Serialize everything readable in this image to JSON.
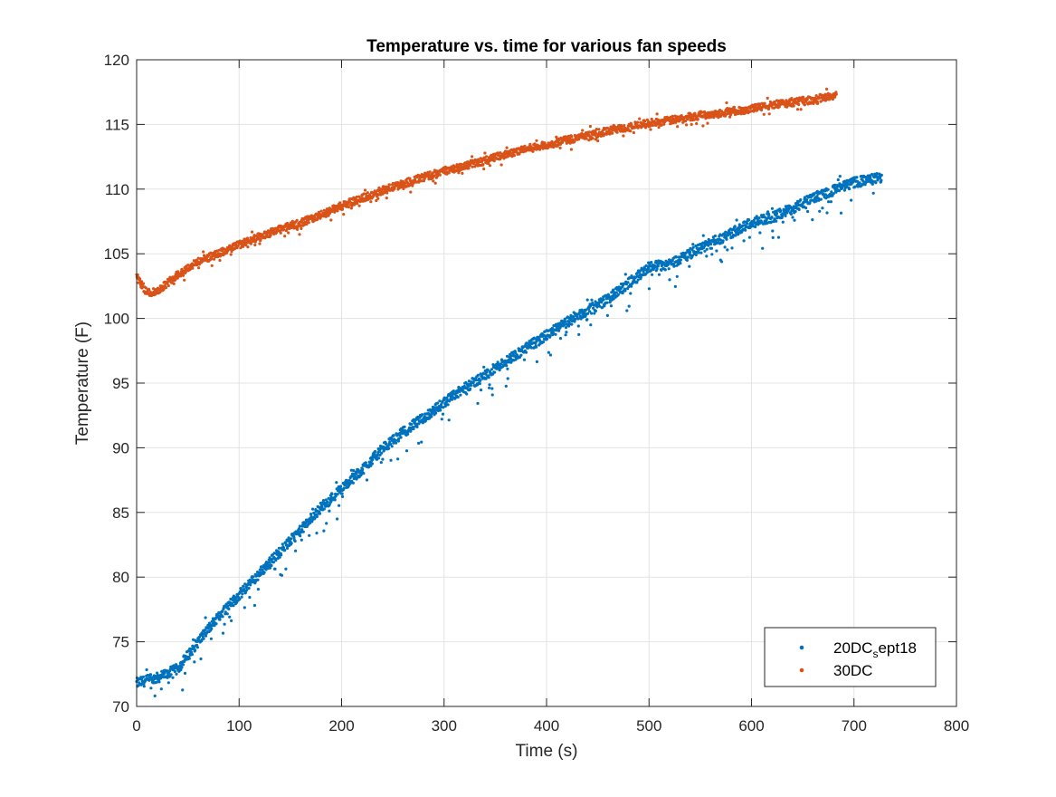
{
  "chart_data": {
    "type": "scatter",
    "title": "Temperature vs. time for various fan speeds",
    "xlabel": "Time (s)",
    "ylabel": "Temperature (F)",
    "xlim": [
      0,
      800
    ],
    "ylim": [
      70,
      120
    ],
    "xticks": [
      0,
      100,
      200,
      300,
      400,
      500,
      600,
      700,
      800
    ],
    "yticks": [
      70,
      75,
      80,
      85,
      90,
      95,
      100,
      105,
      110,
      115,
      120
    ],
    "grid": true,
    "legend_position": "bottom-right",
    "series": [
      {
        "name_main": "20DC",
        "name_sub": "s",
        "name_rest": "ept18",
        "color": "#0072BD",
        "x_range": [
          0,
          727
        ],
        "trend": [
          [
            0,
            71.8
          ],
          [
            20,
            72.2
          ],
          [
            40,
            72.9
          ],
          [
            60,
            75.0
          ],
          [
            80,
            77.0
          ],
          [
            100,
            78.6
          ],
          [
            120,
            80.3
          ],
          [
            140,
            82.0
          ],
          [
            160,
            83.6
          ],
          [
            180,
            85.4
          ],
          [
            200,
            86.8
          ],
          [
            220,
            88.3
          ],
          [
            240,
            89.9
          ],
          [
            260,
            91.2
          ],
          [
            280,
            92.3
          ],
          [
            300,
            93.5
          ],
          [
            320,
            94.6
          ],
          [
            340,
            95.6
          ],
          [
            360,
            96.7
          ],
          [
            380,
            97.7
          ],
          [
            400,
            98.7
          ],
          [
            420,
            99.7
          ],
          [
            440,
            100.6
          ],
          [
            460,
            101.5
          ],
          [
            480,
            102.7
          ],
          [
            500,
            104.0
          ],
          [
            520,
            104.2
          ],
          [
            540,
            105.0
          ],
          [
            560,
            105.8
          ],
          [
            580,
            106.6
          ],
          [
            600,
            107.4
          ],
          [
            620,
            107.8
          ],
          [
            640,
            108.5
          ],
          [
            660,
            109.3
          ],
          [
            680,
            109.9
          ],
          [
            700,
            110.5
          ],
          [
            727,
            110.9
          ]
        ],
        "noise": 0.8,
        "dips": 2.0
      },
      {
        "name_main": "30DC",
        "name_sub": "",
        "name_rest": "",
        "color": "#D95319",
        "x_range": [
          0,
          683
        ],
        "trend": [
          [
            0,
            103.2
          ],
          [
            10,
            102.0
          ],
          [
            20,
            102.1
          ],
          [
            40,
            103.4
          ],
          [
            60,
            104.4
          ],
          [
            80,
            105.0
          ],
          [
            100,
            105.7
          ],
          [
            120,
            106.3
          ],
          [
            140,
            106.9
          ],
          [
            160,
            107.4
          ],
          [
            180,
            108.0
          ],
          [
            200,
            108.7
          ],
          [
            220,
            109.3
          ],
          [
            240,
            109.9
          ],
          [
            260,
            110.4
          ],
          [
            280,
            110.9
          ],
          [
            300,
            111.4
          ],
          [
            320,
            111.8
          ],
          [
            340,
            112.2
          ],
          [
            360,
            112.7
          ],
          [
            380,
            113.1
          ],
          [
            400,
            113.4
          ],
          [
            420,
            113.8
          ],
          [
            440,
            114.1
          ],
          [
            460,
            114.5
          ],
          [
            480,
            114.8
          ],
          [
            500,
            115.1
          ],
          [
            520,
            115.3
          ],
          [
            540,
            115.6
          ],
          [
            560,
            115.8
          ],
          [
            580,
            116.0
          ],
          [
            600,
            116.2
          ],
          [
            620,
            116.5
          ],
          [
            640,
            116.7
          ],
          [
            660,
            116.9
          ],
          [
            683,
            117.3
          ]
        ],
        "noise": 0.6,
        "dips": 0.6
      }
    ]
  }
}
